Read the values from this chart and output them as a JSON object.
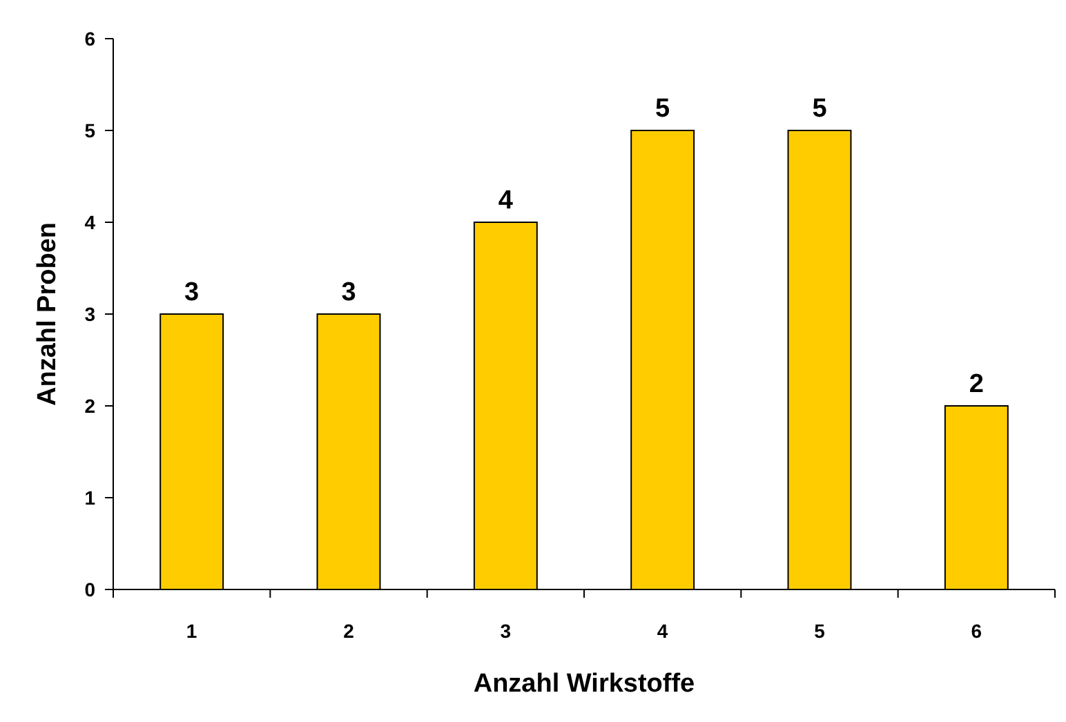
{
  "chart_data": {
    "type": "bar",
    "xlabel": "Anzahl Wirkstoffe",
    "ylabel": "Anzahl Proben",
    "categories": [
      "1",
      "2",
      "3",
      "4",
      "5",
      "6"
    ],
    "values": [
      3,
      3,
      4,
      5,
      5,
      2
    ],
    "color": "#ffcc00",
    "ylim": [
      0,
      6
    ],
    "yticks": [
      0,
      1,
      2,
      3,
      4,
      5,
      6
    ],
    "grid": false,
    "data_labels": true
  }
}
